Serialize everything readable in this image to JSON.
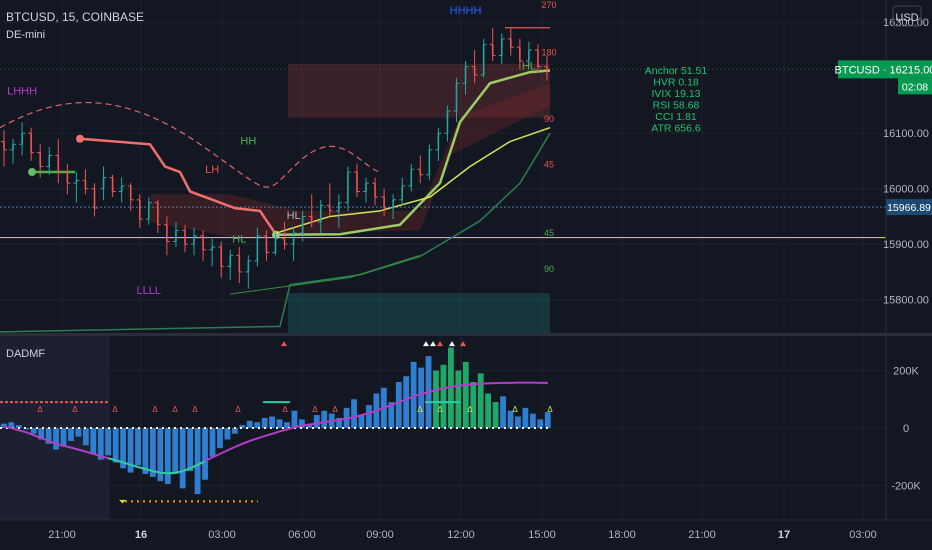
{
  "header": {
    "symbol_line": "BTCUSD, 15, COINBASE",
    "indicator": "DE-mini",
    "currency_button": "USD"
  },
  "sub_pane": {
    "title": "DADMF"
  },
  "colors": {
    "background": "#131722",
    "grid": "#1e2230",
    "text": "#b2b5be",
    "bull_candle": "#26a69a",
    "bear_candle": "#ef5350",
    "histogram": "#2f7fd0",
    "histogram_strong": "#1fa86a",
    "signal_line": "#b43cc8",
    "accent_green": "#089950",
    "accent_blue": "#2962ff"
  },
  "chart_data": [
    {
      "type": "candlestick",
      "pane": "price",
      "ylim": [
        15740,
        16340
      ],
      "y_ticks": [
        15800,
        15900,
        16000,
        16100,
        16300
      ],
      "y_tick_labels": [
        "15800.00",
        "15900.00",
        "16000.00",
        "16100.00",
        "16300.00"
      ],
      "x_ticks": [
        "21:00",
        "16",
        "03:00",
        "06:00",
        "09:00",
        "12:00",
        "15:00",
        "18:00",
        "21:00",
        "17",
        "03:00"
      ],
      "price_label": {
        "text": "BTCUSD · 16215.00",
        "value": 16215,
        "countdown": "02:08"
      },
      "level_label": {
        "text": "15966.89",
        "value": 15966.89
      },
      "candles": [
        [
          16085,
          16105,
          16040,
          16070
        ],
        [
          16070,
          16090,
          16045,
          16080
        ],
        [
          16080,
          16120,
          16060,
          16100
        ],
        [
          16100,
          16110,
          16050,
          16065
        ],
        [
          16065,
          16080,
          16020,
          16040
        ],
        [
          16040,
          16075,
          16025,
          16060
        ],
        [
          16060,
          16090,
          16010,
          16030
        ],
        [
          16030,
          16045,
          15990,
          16010
        ],
        [
          16010,
          16030,
          15975,
          16015
        ],
        [
          16015,
          16035,
          15990,
          16000
        ],
        [
          16000,
          16010,
          15950,
          15965
        ],
        [
          16000,
          16040,
          15980,
          16020
        ],
        [
          16020,
          16025,
          15985,
          15995
        ],
        [
          15995,
          16020,
          15975,
          16005
        ],
        [
          16005,
          16010,
          15960,
          15980
        ],
        [
          15980,
          15990,
          15930,
          15945
        ],
        [
          15945,
          15985,
          15935,
          15975
        ],
        [
          15975,
          15980,
          15920,
          15935
        ],
        [
          15935,
          15950,
          15880,
          15905
        ],
        [
          15905,
          15940,
          15895,
          15925
        ],
        [
          15925,
          15935,
          15885,
          15900
        ],
        [
          15900,
          15930,
          15880,
          15915
        ],
        [
          15915,
          15925,
          15870,
          15890
        ],
        [
          15890,
          15910,
          15860,
          15895
        ],
        [
          15895,
          15905,
          15840,
          15860
        ],
        [
          15860,
          15890,
          15835,
          15880
        ],
        [
          15880,
          15895,
          15830,
          15850
        ],
        [
          15850,
          15880,
          15820,
          15870
        ],
        [
          15870,
          15930,
          15860,
          15915
        ],
        [
          15915,
          15925,
          15870,
          15885
        ],
        [
          15885,
          15920,
          15880,
          15910
        ],
        [
          15910,
          15940,
          15890,
          15900
        ],
        [
          15900,
          15930,
          15870,
          15920
        ],
        [
          15920,
          15960,
          15905,
          15950
        ],
        [
          15950,
          15990,
          15930,
          15940
        ],
        [
          15940,
          15980,
          15920,
          15970
        ],
        [
          15970,
          16010,
          15950,
          15960
        ],
        [
          15960,
          15990,
          15930,
          15975
        ],
        [
          15975,
          16040,
          15960,
          16030
        ],
        [
          16030,
          16045,
          15985,
          15995
        ],
        [
          15995,
          16020,
          15975,
          16010
        ],
        [
          16010,
          16020,
          15970,
          15985
        ],
        [
          15985,
          16000,
          15950,
          15965
        ],
        [
          15965,
          15990,
          15945,
          15980
        ],
        [
          15980,
          16020,
          15970,
          16005
        ],
        [
          16005,
          16045,
          15995,
          16035
        ],
        [
          16035,
          16060,
          16010,
          16025
        ],
        [
          16025,
          16080,
          16015,
          16070
        ],
        [
          16070,
          16110,
          16050,
          16100
        ],
        [
          16100,
          16150,
          16085,
          16140
        ],
        [
          16140,
          16200,
          16120,
          16190
        ],
        [
          16190,
          16230,
          16170,
          16220
        ],
        [
          16220,
          16250,
          16190,
          16205
        ],
        [
          16205,
          16270,
          16200,
          16260
        ],
        [
          16260,
          16290,
          16230,
          16240
        ],
        [
          16240,
          16280,
          16225,
          16270
        ],
        [
          16270,
          16290,
          16240,
          16255
        ],
        [
          16255,
          16270,
          16215,
          16230
        ],
        [
          16230,
          16265,
          16220,
          16250
        ],
        [
          16250,
          16260,
          16210,
          16220
        ],
        [
          16220,
          16240,
          16195,
          16215
        ]
      ],
      "overlay_labels": [
        {
          "text": "LHHH",
          "i": 2,
          "y": 16170,
          "color": "#b43cc8"
        },
        {
          "text": "LH",
          "i": 23,
          "y": 16028,
          "color": "#ef5350"
        },
        {
          "text": "HH",
          "i": 27,
          "y": 16080,
          "color": "#4caf50"
        },
        {
          "text": "HL",
          "i": 26,
          "y": 15903,
          "color": "#4caf50"
        },
        {
          "text": "HL",
          "i": 32,
          "y": 15945,
          "color": "#b2b5be"
        },
        {
          "text": "LLLL",
          "i": 16,
          "y": 15810,
          "color": "#b43cc8"
        },
        {
          "text": "HHHH",
          "i": 51,
          "y": 16315,
          "color": "#2962ff"
        },
        {
          "text": "HL",
          "i": 58,
          "y": 16215,
          "color": "#4caf50"
        }
      ],
      "level_markers": [
        {
          "text": "270",
          "y": 16365,
          "color": "#ef5350"
        },
        {
          "text": "180",
          "y": 16240,
          "color": "#ef5350"
        },
        {
          "text": "90",
          "y": 16120,
          "color": "#ef5350"
        },
        {
          "text": "45",
          "y": 16038,
          "color": "#ef5350"
        },
        {
          "text": "45",
          "y": 15915,
          "color": "#4caf50"
        },
        {
          "text": "90",
          "y": 15850,
          "color": "#4caf50"
        }
      ],
      "stats": [
        "Anchor 51.51",
        "HVR 0.18",
        "IVIX 19.13",
        "RSI 58.68",
        "CCI 1.81",
        "ATR 656.6"
      ]
    },
    {
      "type": "histogram",
      "pane": "indicator",
      "title": "DADMF",
      "ylim": [
        -320000,
        320000
      ],
      "y_ticks": [
        200000,
        0,
        -200000
      ],
      "y_tick_labels": [
        "200K",
        "0",
        "-200K"
      ],
      "values": [
        15000,
        20000,
        10000,
        -5000,
        -20000,
        -40000,
        -55000,
        -75000,
        -65000,
        -45000,
        -30000,
        -60000,
        -90000,
        -110000,
        -95000,
        -120000,
        -140000,
        -155000,
        -130000,
        -160000,
        -170000,
        -185000,
        -195000,
        -160000,
        -210000,
        -150000,
        -230000,
        -180000,
        -100000,
        -70000,
        -40000,
        -20000,
        10000,
        25000,
        20000,
        35000,
        40000,
        30000,
        20000,
        60000,
        30000,
        15000,
        45000,
        60000,
        50000,
        35000,
        70000,
        100000,
        45000,
        80000,
        120000,
        140000,
        90000,
        160000,
        180000,
        230000,
        210000,
        250000,
        200000,
        220000,
        280000,
        200000,
        230000,
        160000,
        190000,
        120000,
        90000,
        110000,
        60000,
        40000,
        70000,
        50000,
        30000,
        55000
      ],
      "strong_from": 58,
      "signal_line": [
        5000,
        0,
        -8000,
        -15000,
        -25000,
        -35000,
        -45000,
        -55000,
        -62000,
        -68000,
        -75000,
        -82000,
        -90000,
        -98000,
        -105000,
        -112000,
        -120000,
        -128000,
        -136000,
        -143000,
        -150000,
        -155000,
        -158000,
        -156000,
        -150000,
        -140000,
        -128000,
        -115000,
        -102000,
        -90000,
        -78000,
        -66000,
        -55000,
        -45000,
        -36000,
        -28000,
        -20000,
        -12000,
        -5000,
        2000,
        8000,
        12000,
        16000,
        20000,
        24000,
        28000,
        32000,
        38000,
        45000,
        52000,
        60000,
        70000,
        80000,
        90000,
        100000,
        110000,
        118000,
        125000,
        132000,
        138000,
        143000,
        147000,
        150000,
        152000,
        154000,
        155000,
        156000,
        157000,
        157000,
        158000,
        158000,
        158000,
        157000,
        157000
      ]
    }
  ]
}
